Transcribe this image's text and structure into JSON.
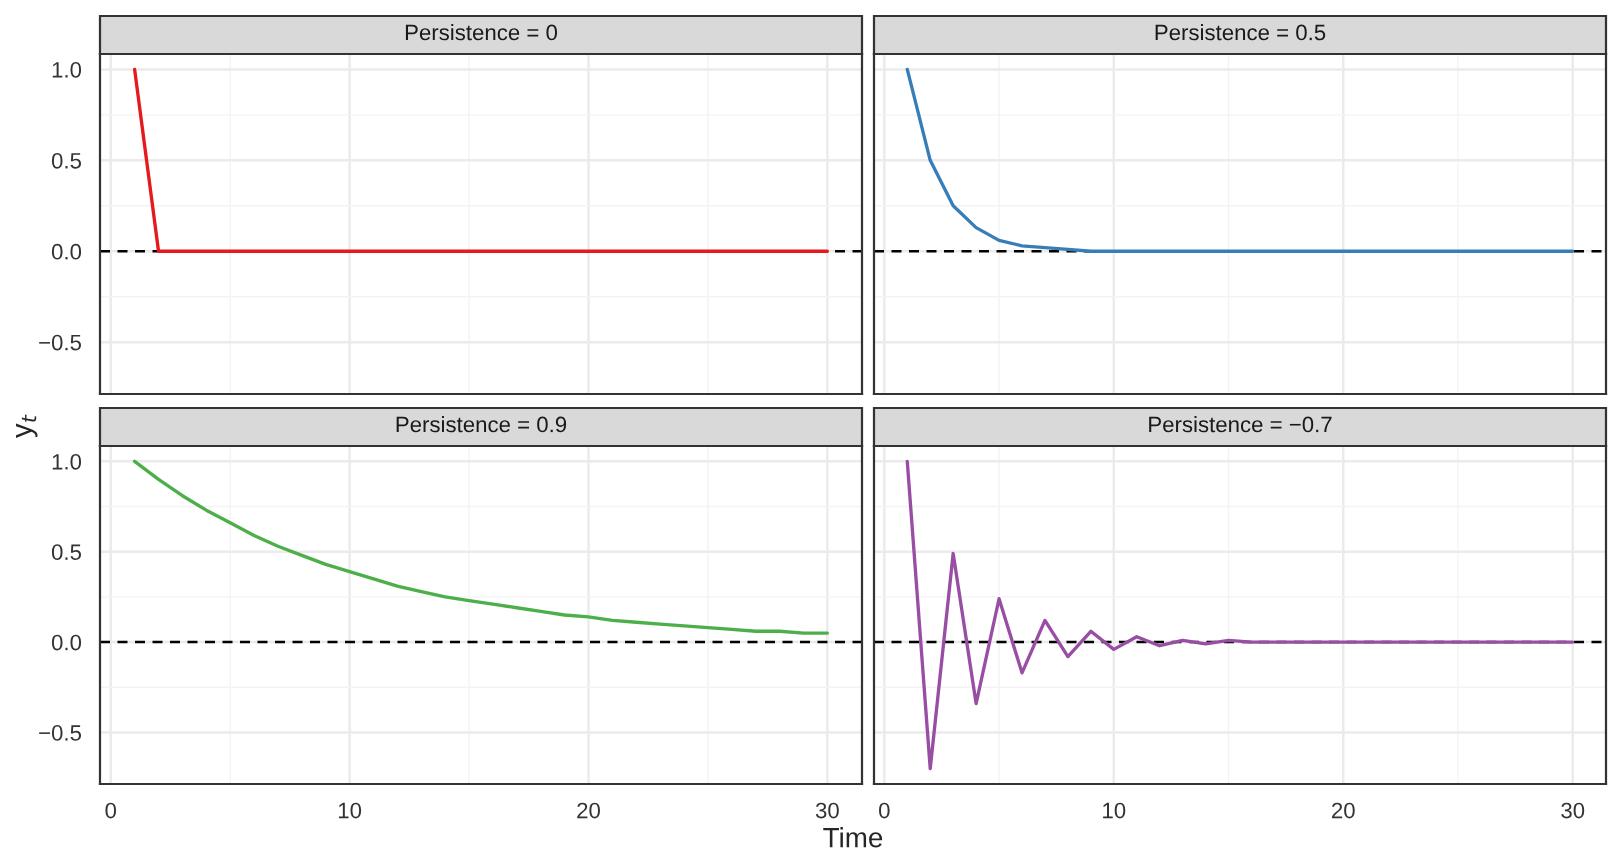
{
  "chart_data": [
    {
      "type": "line",
      "title": "Persistence = 0",
      "ylabel": "y$_{t}$",
      "x": [
        1,
        2,
        3,
        4,
        5,
        6,
        7,
        8,
        9,
        10,
        11,
        12,
        13,
        14,
        15,
        16,
        17,
        18,
        19,
        20,
        21,
        22,
        23,
        24,
        25,
        26,
        27,
        28,
        29,
        30
      ],
      "series": [
        {
          "color": "#e41a1c",
          "values": [
            1,
            0,
            0,
            0,
            0,
            0,
            0,
            0,
            0,
            0,
            0,
            0,
            0,
            0,
            0,
            0,
            0,
            0,
            0,
            0,
            0,
            0,
            0,
            0,
            0,
            0,
            0,
            0,
            0,
            0
          ]
        }
      ],
      "xlim": [
        -0.45,
        31.45
      ],
      "xticks": [
        0,
        10,
        20,
        30
      ],
      "ylim": [
        -0.785,
        1.085
      ],
      "yticks": [
        {
          "value": -0.5,
          "label": "−0.5"
        },
        {
          "value": 0,
          "label": "0.0"
        },
        {
          "value": 0.5,
          "label": "0.5"
        },
        {
          "value": 1,
          "label": "1.0"
        }
      ],
      "grid": true,
      "tick_labels": "y",
      "ref_lines": [
        {
          "axis": "y",
          "value": 0,
          "color": "#000000",
          "line_style": "dashed"
        }
      ]
    },
    {
      "type": "line",
      "title": "Persistence = 0.5",
      "x": [
        1,
        2,
        3,
        4,
        5,
        6,
        7,
        8,
        9,
        10,
        11,
        12,
        13,
        14,
        15,
        16,
        17,
        18,
        19,
        20,
        21,
        22,
        23,
        24,
        25,
        26,
        27,
        28,
        29,
        30
      ],
      "series": [
        {
          "color": "#377eb8",
          "values": [
            1,
            0.5,
            0.25,
            0.13,
            0.06,
            0.03,
            0.02,
            0.01,
            0,
            0,
            0,
            0,
            0,
            0,
            0,
            0,
            0,
            0,
            0,
            0,
            0,
            0,
            0,
            0,
            0,
            0,
            0,
            0,
            0,
            0
          ]
        }
      ],
      "xlim": [
        -0.45,
        31.45
      ],
      "xticks": [
        0,
        10,
        20,
        30
      ],
      "ylim": [
        -0.785,
        1.085
      ],
      "yticks": [
        -0.5,
        0,
        0.5,
        1
      ],
      "grid": true,
      "tick_labels": false,
      "ref_lines": [
        {
          "axis": "y",
          "value": 0,
          "color": "#000000",
          "line_style": "dashed"
        }
      ]
    },
    {
      "type": "line",
      "title": "Persistence = 0.9",
      "xlabel": "Time",
      "x": [
        1,
        2,
        3,
        4,
        5,
        6,
        7,
        8,
        9,
        10,
        11,
        12,
        13,
        14,
        15,
        16,
        17,
        18,
        19,
        20,
        21,
        22,
        23,
        24,
        25,
        26,
        27,
        28,
        29,
        30
      ],
      "series": [
        {
          "color": "#4daf4a",
          "values": [
            1,
            0.9,
            0.81,
            0.73,
            0.66,
            0.59,
            0.53,
            0.48,
            0.43,
            0.39,
            0.35,
            0.31,
            0.28,
            0.25,
            0.23,
            0.21,
            0.19,
            0.17,
            0.15,
            0.14,
            0.12,
            0.11,
            0.1,
            0.09,
            0.08,
            0.07,
            0.06,
            0.06,
            0.05,
            0.05
          ]
        }
      ],
      "xlim": [
        -0.45,
        31.45
      ],
      "xticks": [
        0,
        10,
        20,
        30
      ],
      "ylim": [
        -0.785,
        1.085
      ],
      "yticks": [
        {
          "value": -0.5,
          "label": "−0.5"
        },
        {
          "value": 0,
          "label": "0.0"
        },
        {
          "value": 0.5,
          "label": "0.5"
        },
        {
          "value": 1,
          "label": "1.0"
        }
      ],
      "grid": true,
      "ref_lines": [
        {
          "axis": "y",
          "value": 0,
          "color": "#000000",
          "line_style": "dashed"
        }
      ]
    },
    {
      "type": "line",
      "title": "Persistence = −0.7",
      "x": [
        1,
        2,
        3,
        4,
        5,
        6,
        7,
        8,
        9,
        10,
        11,
        12,
        13,
        14,
        15,
        16,
        17,
        18,
        19,
        20,
        21,
        22,
        23,
        24,
        25,
        26,
        27,
        28,
        29,
        30
      ],
      "series": [
        {
          "color": "#984ea3",
          "values": [
            1,
            -0.7,
            0.49,
            -0.34,
            0.24,
            -0.17,
            0.12,
            -0.08,
            0.06,
            -0.04,
            0.03,
            -0.02,
            0.01,
            -0.01,
            0.01,
            0,
            0,
            0,
            0,
            0,
            0,
            0,
            0,
            0,
            0,
            0,
            0,
            0,
            0,
            0
          ]
        }
      ],
      "xlim": [
        -0.45,
        31.45
      ],
      "xticks": [
        0,
        10,
        20,
        30
      ],
      "ylim": [
        -0.785,
        1.085
      ],
      "yticks": [
        -0.5,
        0,
        0.5,
        1
      ],
      "grid": true,
      "tick_labels": "x",
      "ref_lines": [
        {
          "axis": "y",
          "value": 0,
          "color": "#000000",
          "line_style": "dashed"
        }
      ]
    }
  ]
}
